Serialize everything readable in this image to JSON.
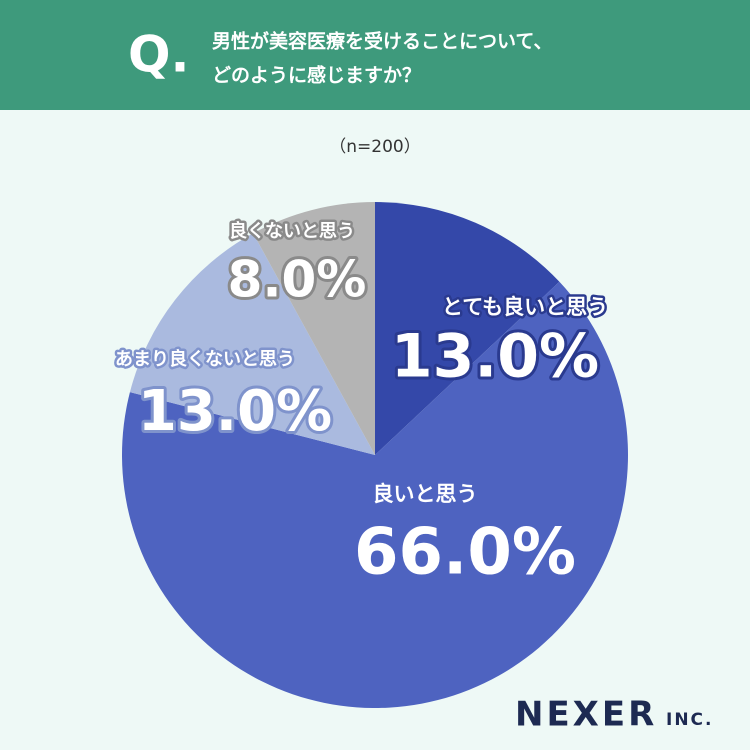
{
  "header": {
    "mark": "Q.",
    "lines": [
      "男性が美容医療を受けることについて、",
      "どのように感じますか？"
    ]
  },
  "chart_data": {
    "type": "pie",
    "subtitle": "（n=200）",
    "categories": [
      "とても良いと思う",
      "良いと思う",
      "あまり良くないと思う",
      "良くないと思う"
    ],
    "values": [
      13.0,
      66.0,
      13.0,
      8.0
    ],
    "value_labels": [
      "13.0%",
      "66.0%",
      "13.0%",
      "8.0%"
    ],
    "colors": [
      "#3448a9",
      "#4e63c0",
      "#aabadf",
      "#b4b4b4"
    ]
  },
  "logo": {
    "main": "NEXER",
    "sub": "INC."
  }
}
